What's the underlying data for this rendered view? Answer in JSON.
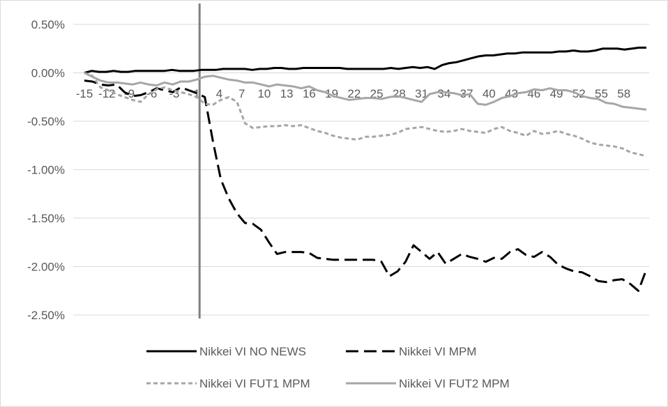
{
  "chart_data": {
    "type": "line",
    "title": "",
    "xlabel": "",
    "ylabel": "",
    "x_start": -15,
    "x_end": 60,
    "x_tick_labels": [
      "-15",
      "-12",
      "-9",
      "-6",
      "-3",
      "1",
      "4",
      "7",
      "10",
      "13",
      "16",
      "19",
      "22",
      "25",
      "28",
      "31",
      "34",
      "37",
      "40",
      "43",
      "46",
      "49",
      "52",
      "55",
      "58"
    ],
    "y_tick_labels": [
      "0.50%",
      "0.00%",
      "-0.50%",
      "-1.00%",
      "-1.50%",
      "-2.00%",
      "-2.50%"
    ],
    "ylim": [
      -2.5,
      0.5
    ],
    "y_unit": "%",
    "grid": "horizontal",
    "legend_position": "bottom",
    "event_line_x": 0,
    "series": [
      {
        "name": "Nikkei VI NO NEWS",
        "color": "#000000",
        "style": "solid",
        "values": [
          0.0,
          0.02,
          0.01,
          0.01,
          0.02,
          0.01,
          0.01,
          0.02,
          0.02,
          0.02,
          0.02,
          0.02,
          0.03,
          0.02,
          0.02,
          0.02,
          0.03,
          0.03,
          0.03,
          0.04,
          0.04,
          0.04,
          0.04,
          0.03,
          0.04,
          0.04,
          0.05,
          0.05,
          0.04,
          0.04,
          0.05,
          0.05,
          0.05,
          0.05,
          0.05,
          0.05,
          0.04,
          0.04,
          0.04,
          0.04,
          0.04,
          0.04,
          0.05,
          0.04,
          0.05,
          0.06,
          0.05,
          0.06,
          0.04,
          0.08,
          0.1,
          0.11,
          0.13,
          0.15,
          0.17,
          0.18,
          0.18,
          0.19,
          0.2,
          0.2,
          0.21,
          0.21,
          0.21,
          0.21,
          0.21,
          0.22,
          0.22,
          0.23,
          0.22,
          0.22,
          0.23,
          0.25,
          0.25,
          0.25,
          0.24,
          0.25,
          0.26,
          0.26
        ]
      },
      {
        "name": "Nikkei VI MPM",
        "color": "#000000",
        "style": "dashed",
        "values": [
          -0.08,
          -0.09,
          -0.12,
          -0.13,
          -0.12,
          -0.2,
          -0.24,
          -0.23,
          -0.2,
          -0.16,
          -0.18,
          -0.2,
          -0.15,
          -0.18,
          -0.21,
          -0.25,
          -0.7,
          -1.1,
          -1.3,
          -1.45,
          -1.55,
          -1.56,
          -1.62,
          -1.75,
          -1.87,
          -1.85,
          -1.85,
          -1.85,
          -1.86,
          -1.91,
          -1.92,
          -1.93,
          -1.93,
          -1.93,
          -1.93,
          -1.93,
          -1.93,
          -1.95,
          -2.1,
          -2.05,
          -1.95,
          -1.78,
          -1.85,
          -1.92,
          -1.85,
          -1.97,
          -1.92,
          -1.87,
          -1.9,
          -1.92,
          -1.95,
          -1.91,
          -1.92,
          -1.85,
          -1.82,
          -1.88,
          -1.9,
          -1.85,
          -1.9,
          -1.98,
          -2.02,
          -2.05,
          -2.06,
          -2.1,
          -2.15,
          -2.16,
          -2.14,
          -2.13,
          -2.18,
          -2.25,
          -2.03
        ]
      },
      {
        "name": "Nikkei VI FUT1 MPM",
        "color": "#a6a6a6",
        "style": "dotted",
        "values": [
          0.0,
          -0.03,
          -0.15,
          -0.18,
          -0.22,
          -0.25,
          -0.28,
          -0.3,
          -0.22,
          -0.17,
          -0.15,
          -0.18,
          -0.2,
          -0.22,
          -0.25,
          -0.32,
          -0.33,
          -0.28,
          -0.25,
          -0.3,
          -0.52,
          -0.57,
          -0.56,
          -0.55,
          -0.55,
          -0.54,
          -0.55,
          -0.54,
          -0.57,
          -0.6,
          -0.62,
          -0.65,
          -0.67,
          -0.68,
          -0.69,
          -0.66,
          -0.66,
          -0.65,
          -0.64,
          -0.62,
          -0.58,
          -0.57,
          -0.56,
          -0.58,
          -0.6,
          -0.61,
          -0.6,
          -0.58,
          -0.6,
          -0.61,
          -0.62,
          -0.58,
          -0.56,
          -0.6,
          -0.62,
          -0.65,
          -0.6,
          -0.63,
          -0.62,
          -0.6,
          -0.63,
          -0.65,
          -0.68,
          -0.72,
          -0.74,
          -0.75,
          -0.76,
          -0.78,
          -0.82,
          -0.84,
          -0.86
        ]
      },
      {
        "name": "Nikkei VI FUT2 MPM",
        "color": "#a6a6a6",
        "style": "solid",
        "values": [
          0.0,
          -0.04,
          -0.08,
          -0.1,
          -0.1,
          -0.11,
          -0.12,
          -0.1,
          -0.12,
          -0.13,
          -0.1,
          -0.12,
          -0.09,
          -0.09,
          -0.07,
          -0.04,
          -0.03,
          -0.05,
          -0.07,
          -0.08,
          -0.1,
          -0.1,
          -0.12,
          -0.14,
          -0.12,
          -0.13,
          -0.14,
          -0.16,
          -0.14,
          -0.18,
          -0.2,
          -0.24,
          -0.26,
          -0.28,
          -0.27,
          -0.26,
          -0.26,
          -0.27,
          -0.25,
          -0.24,
          -0.26,
          -0.28,
          -0.3,
          -0.22,
          -0.2,
          -0.2,
          -0.21,
          -0.23,
          -0.22,
          -0.32,
          -0.33,
          -0.3,
          -0.26,
          -0.24,
          -0.21,
          -0.2,
          -0.17,
          -0.18,
          -0.16,
          -0.18,
          -0.18,
          -0.2,
          -0.24,
          -0.26,
          -0.27,
          -0.31,
          -0.32,
          -0.35,
          -0.36,
          -0.37,
          -0.38
        ]
      }
    ]
  }
}
